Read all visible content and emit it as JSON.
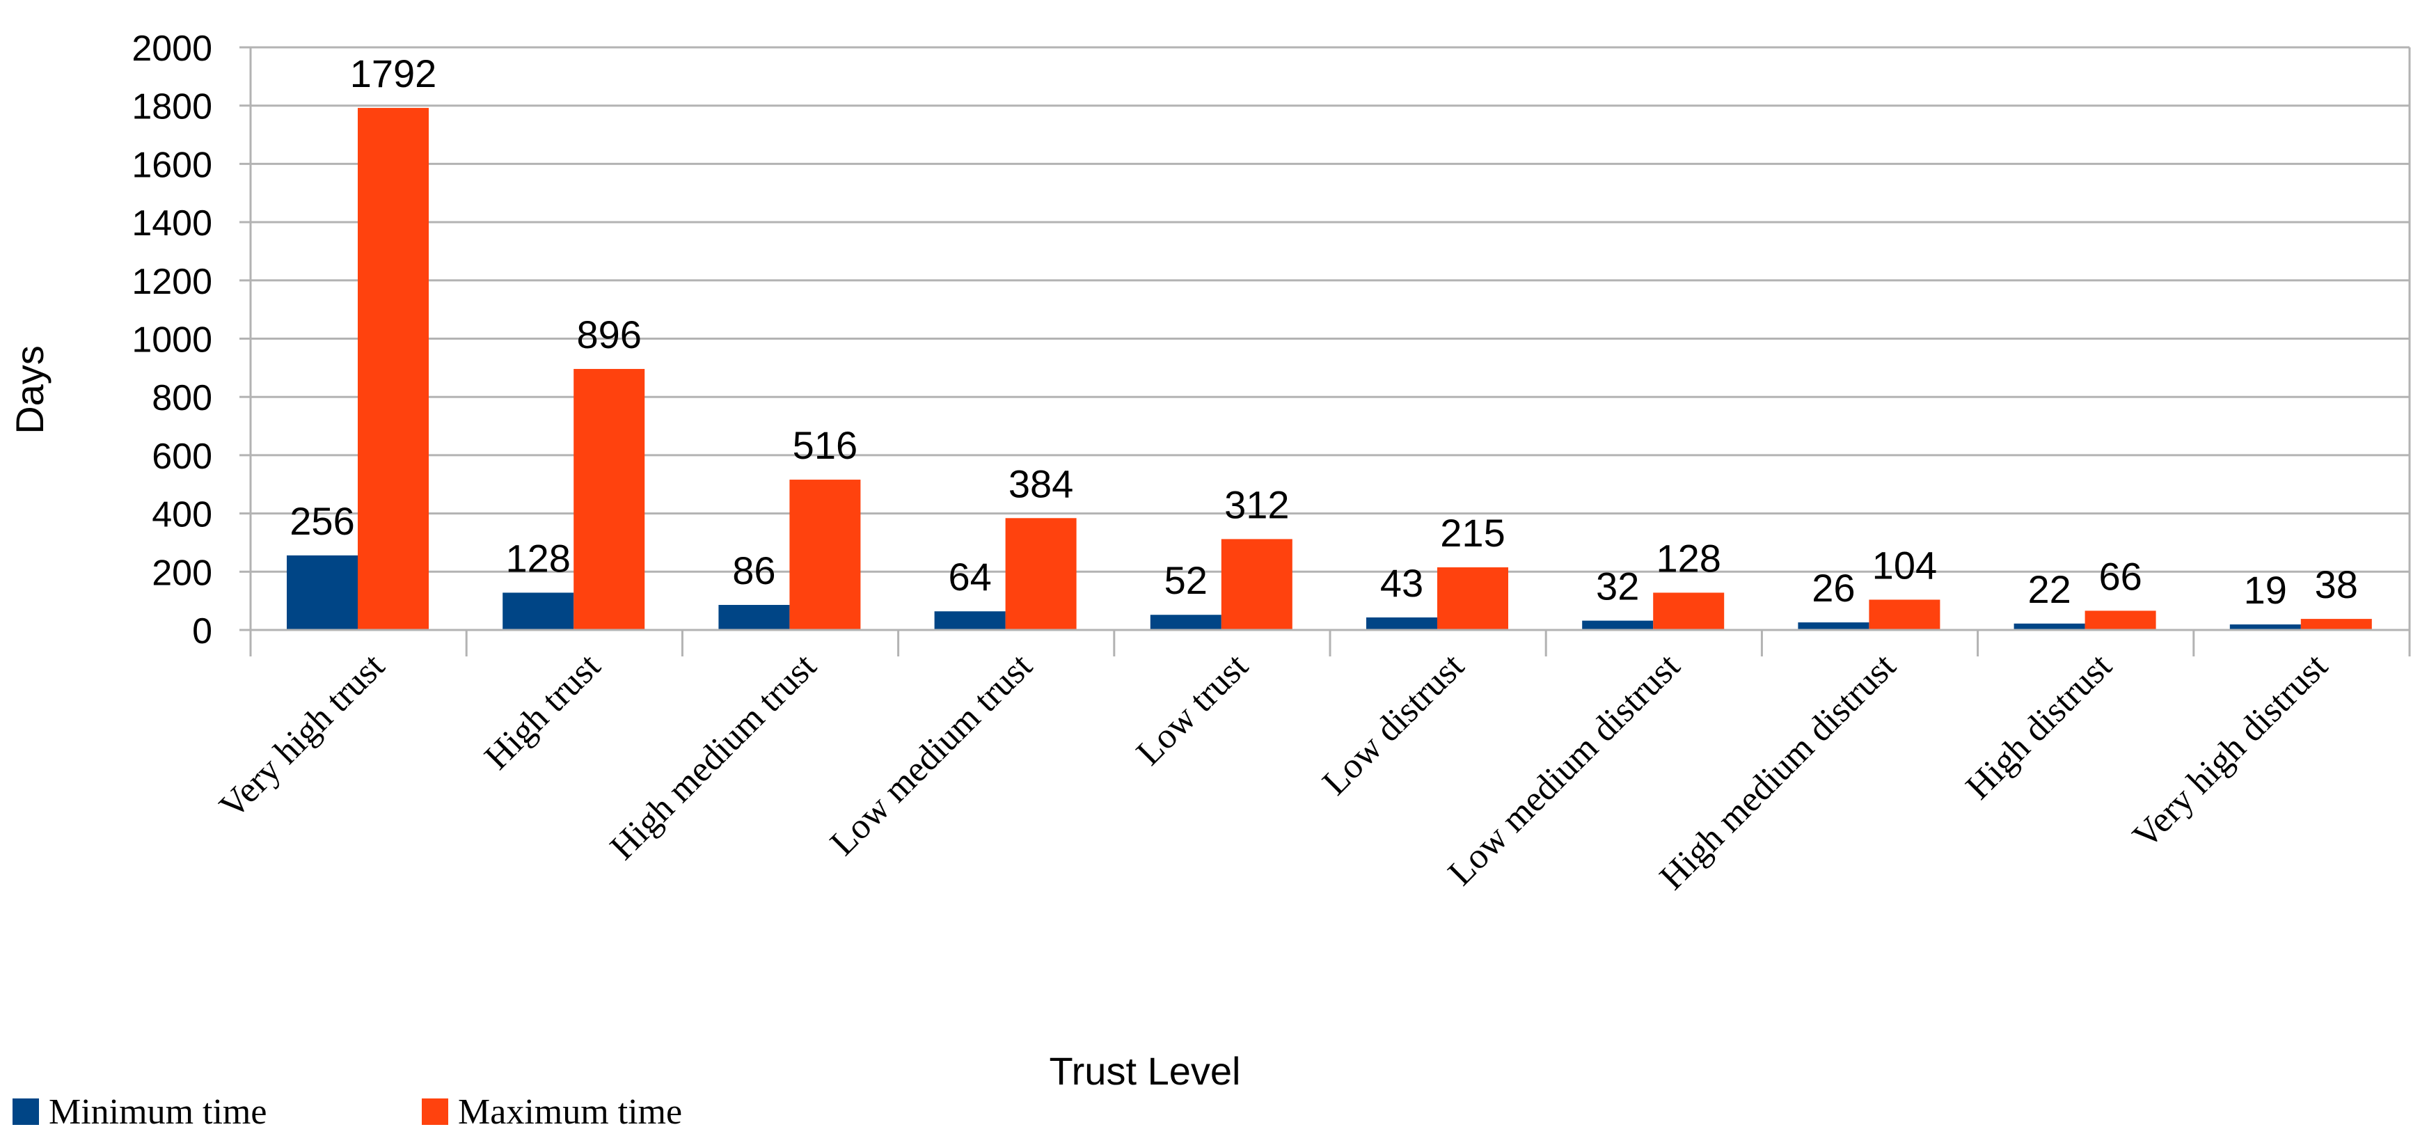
{
  "chart_data": {
    "type": "bar",
    "xlabel": "Trust Level",
    "ylabel": "Days",
    "ylim": [
      0,
      2000
    ],
    "yticks": [
      0,
      200,
      400,
      600,
      800,
      1000,
      1200,
      1400,
      1600,
      1800,
      2000
    ],
    "grid": true,
    "legend_position": "bottom-left",
    "categories": [
      "Very high trust",
      "High trust",
      "High medium trust",
      "Low medium trust",
      "Low trust",
      "Low distrust",
      "Low medium distrust",
      "High medium distrust",
      "High distrust",
      "Very high distrust"
    ],
    "series": [
      {
        "name": "Minimum time",
        "color": "#004586",
        "values": [
          256,
          128,
          86,
          64,
          52,
          43,
          32,
          26,
          22,
          19
        ]
      },
      {
        "name": "Maximum time",
        "color": "#ff420e",
        "values": [
          1792,
          896,
          516,
          384,
          312,
          215,
          128,
          104,
          66,
          38
        ]
      }
    ]
  }
}
